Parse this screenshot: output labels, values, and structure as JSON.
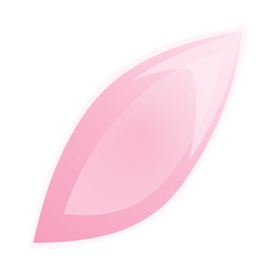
{
  "graphic": {
    "icon": "pink-petal-icon",
    "colors": {
      "background": "#ffffff",
      "petal_light": "#fde3ee",
      "petal_mid": "#f9b8cf",
      "petal_deep": "#f7a0be",
      "edge_glow": "#fff1f6"
    }
  }
}
